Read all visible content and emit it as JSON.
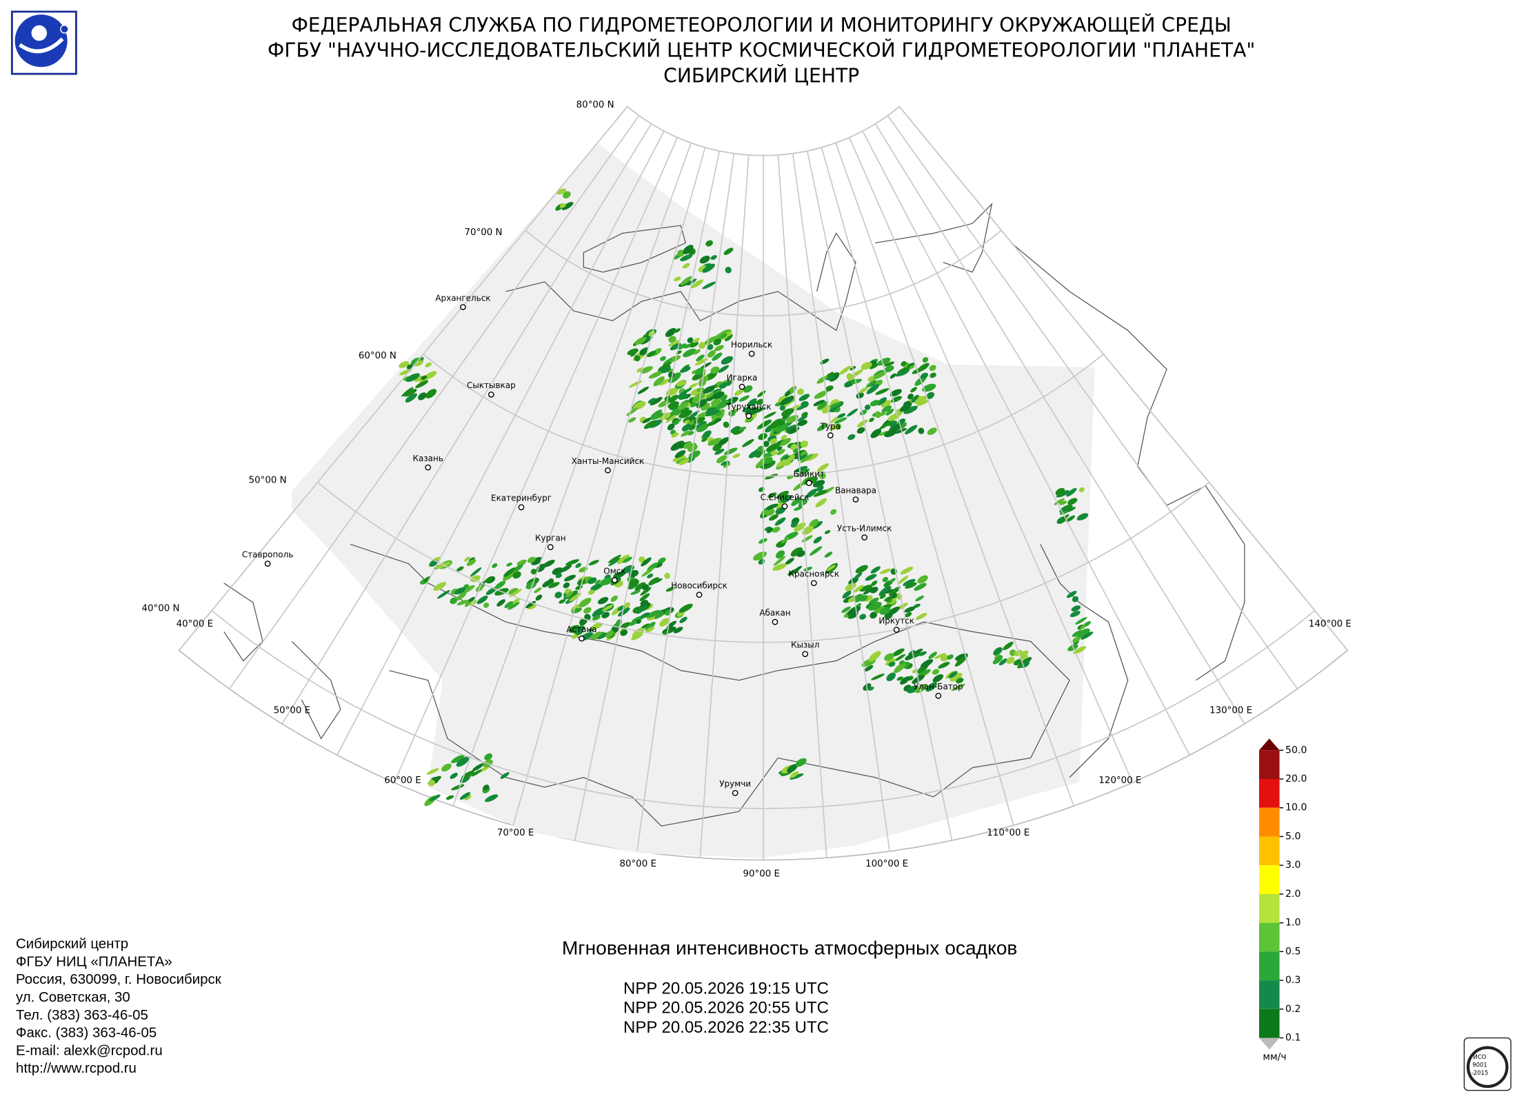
{
  "header": {
    "lines": [
      "ФЕДЕРАЛЬНАЯ СЛУЖБА ПО ГИДРОМЕТЕОРОЛОГИИ И МОНИТОРИНГУ ОКРУЖАЮЩЕЙ СРЕДЫ",
      "ФГБУ \"НАУЧНО-ИССЛЕДОВАТЕЛЬСКИЙ ЦЕНТР КОСМИЧЕСКОЙ ГИДРОМЕТЕОРОЛОГИИ \"ПЛАНЕТА\"",
      "СИБИРСКИЙ ЦЕНТР"
    ]
  },
  "map": {
    "lat_labels": [
      "80°00 N",
      "70°00 N",
      "60°00 N",
      "50°00 N",
      "40°00 N"
    ],
    "lon_labels": [
      "40°00 E",
      "50°00 E",
      "60°00 E",
      "70°00 E",
      "80°00 E",
      "90°00 E",
      "100°00 E",
      "110°00 E",
      "120°00 E",
      "130°00 E",
      "140°00 E"
    ],
    "cities": [
      "Архангельск",
      "Сыктывкар",
      "Казань",
      "Екатеринбург",
      "Курган",
      "Ставрополь",
      "Омск",
      "Астана",
      "Новосибирск",
      "Ханты-Мансийск",
      "Норильск",
      "Игарка",
      "Туруханск",
      "Тура",
      "Байкит",
      "Ванавара",
      "С.Енисейск",
      "Усть-Илимск",
      "Красноярск",
      "Абакан",
      "Кызыл",
      "Иркутск",
      "Улан-Батор",
      "Урумчи"
    ]
  },
  "legend": {
    "labels": [
      "50.0",
      "20.0",
      "10.0",
      "5.0",
      "3.0",
      "2.0",
      "1.0",
      "0.5",
      "0.3",
      "0.2",
      "0.1"
    ],
    "unit": "мм/ч"
  },
  "product": {
    "title": "Мгновенная интенсивность атмосферных осадков",
    "passes": [
      "NPP 20.05.2026  19:15 UTC",
      "NPP 20.05.2026  20:55 UTC",
      "NPP 20.05.2026  22:35 UTC"
    ]
  },
  "footer": {
    "address": [
      "Сибирский центр",
      "ФГБУ НИЦ «ПЛАНЕТА»",
      "Россия, 630099, г. Новосибирск",
      "ул. Советская, 30",
      "Тел. (383) 363-46-05",
      "Факс. (383) 363-46-05",
      "E-mail: alexk@rcpod.ru",
      "http://www.rcpod.ru"
    ]
  },
  "badge": {
    "lines": [
      "ИСО",
      "9001",
      "-2015"
    ]
  }
}
